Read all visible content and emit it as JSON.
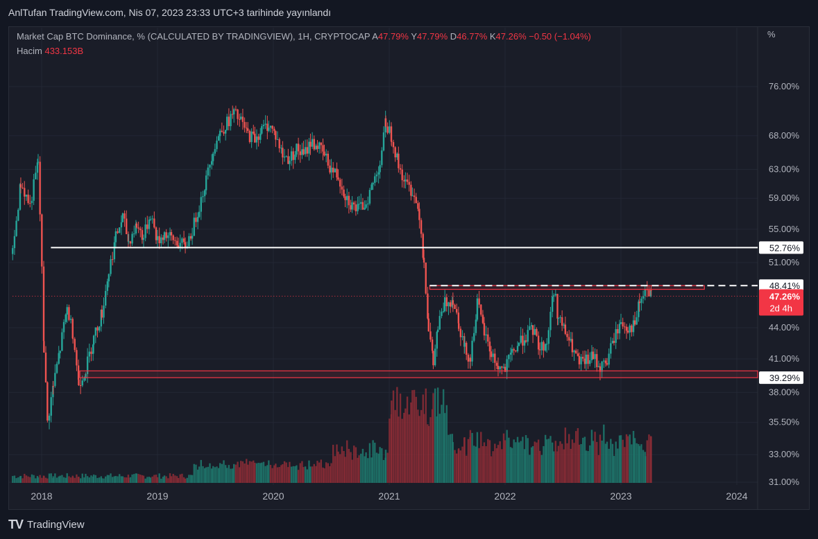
{
  "header": {
    "published": "AnlTufan TradingView.com, Nis 07, 2023 23:33 UTC+3 tarihinde yayınlandı"
  },
  "legend": {
    "symbol": "Market Cap BTC Dominance, % (CALCULATED BY TRADINGVIEW), 1H, CRYPTOCAP",
    "a_label": "A",
    "a_value": "47.79%",
    "y_label": "Y",
    "y_value": "47.79%",
    "d_label": "D",
    "d_value": "46.77%",
    "k_label": "K",
    "k_value": "47.26%",
    "change": "−0.50 (−1.04%)",
    "volume_label": "Hacim",
    "volume_value": "433.153B"
  },
  "axis": {
    "unit": "%"
  },
  "footer": {
    "brand": "TradingView",
    "logo": "TV"
  },
  "chart_data": {
    "type": "candlestick",
    "title": "Market Cap BTC Dominance, % (CALCULATED BY TRADINGVIEW), 1H, CRYPTOCAP",
    "y_scale": "log",
    "y_ticks": [
      "76.00%",
      "68.00%",
      "63.00%",
      "59.00%",
      "55.00%",
      "51.00%",
      "44.00%",
      "41.00%",
      "38.00%",
      "35.50%",
      "33.00%",
      "31.00%"
    ],
    "x_ticks": [
      "2018",
      "2019",
      "2020",
      "2021",
      "2022",
      "2023",
      "2024"
    ],
    "price_labels": [
      {
        "value": 52.76,
        "text": "52.76%"
      },
      {
        "value": 48.41,
        "text": "48.41%"
      },
      {
        "value": 39.29,
        "text": "39.29%"
      }
    ],
    "last_price": {
      "value": 47.26,
      "text": "47.26%",
      "countdown": "2d 4h"
    },
    "levels": [
      {
        "value": 52.76,
        "style": "solid",
        "color": "#ffffff",
        "from": 2018.08
      },
      {
        "value": 48.41,
        "style": "dashed",
        "color": "#ffffff",
        "from": 2021.35
      },
      {
        "value": 47.26,
        "style": "dotted",
        "color": "#f23645",
        "from": 2017.75
      }
    ],
    "zones": [
      {
        "low": 48.0,
        "high": 48.41,
        "from": 2021.35,
        "to": 2023.72,
        "color": "#f23645"
      },
      {
        "low": 39.29,
        "high": 39.9,
        "from": 2018.33,
        "to": 2024.2,
        "color": "#f23645"
      }
    ],
    "closes": [
      {
        "t": 2017.75,
        "v": 52.0
      },
      {
        "t": 2017.82,
        "v": 61.0
      },
      {
        "t": 2017.9,
        "v": 58.0
      },
      {
        "t": 2017.97,
        "v": 64.0
      },
      {
        "t": 2018.02,
        "v": 42.0
      },
      {
        "t": 2018.05,
        "v": 35.5
      },
      {
        "t": 2018.1,
        "v": 38.5
      },
      {
        "t": 2018.16,
        "v": 42.0
      },
      {
        "t": 2018.22,
        "v": 46.0
      },
      {
        "t": 2018.27,
        "v": 43.5
      },
      {
        "t": 2018.32,
        "v": 38.8
      },
      {
        "t": 2018.38,
        "v": 40.0
      },
      {
        "t": 2018.45,
        "v": 43.0
      },
      {
        "t": 2018.52,
        "v": 45.5
      },
      {
        "t": 2018.58,
        "v": 50.0
      },
      {
        "t": 2018.64,
        "v": 54.0
      },
      {
        "t": 2018.7,
        "v": 56.5
      },
      {
        "t": 2018.75,
        "v": 53.5
      },
      {
        "t": 2018.82,
        "v": 55.5
      },
      {
        "t": 2018.88,
        "v": 54.0
      },
      {
        "t": 2018.94,
        "v": 57.0
      },
      {
        "t": 2019.0,
        "v": 53.5
      },
      {
        "t": 2019.06,
        "v": 54.5
      },
      {
        "t": 2019.12,
        "v": 53.8
      },
      {
        "t": 2019.18,
        "v": 53.3
      },
      {
        "t": 2019.24,
        "v": 52.9
      },
      {
        "t": 2019.3,
        "v": 54.8
      },
      {
        "t": 2019.36,
        "v": 58.0
      },
      {
        "t": 2019.42,
        "v": 61.5
      },
      {
        "t": 2019.48,
        "v": 66.0
      },
      {
        "t": 2019.54,
        "v": 68.5
      },
      {
        "t": 2019.6,
        "v": 70.0
      },
      {
        "t": 2019.66,
        "v": 71.5
      },
      {
        "t": 2019.72,
        "v": 70.2
      },
      {
        "t": 2019.78,
        "v": 68.2
      },
      {
        "t": 2019.84,
        "v": 67.6
      },
      {
        "t": 2019.9,
        "v": 68.9
      },
      {
        "t": 2019.96,
        "v": 69.8
      },
      {
        "t": 2020.02,
        "v": 68.0
      },
      {
        "t": 2020.08,
        "v": 65.0
      },
      {
        "t": 2020.14,
        "v": 64.5
      },
      {
        "t": 2020.2,
        "v": 66.0
      },
      {
        "t": 2020.26,
        "v": 65.0
      },
      {
        "t": 2020.32,
        "v": 67.0
      },
      {
        "t": 2020.38,
        "v": 66.5
      },
      {
        "t": 2020.44,
        "v": 65.0
      },
      {
        "t": 2020.5,
        "v": 63.0
      },
      {
        "t": 2020.56,
        "v": 62.0
      },
      {
        "t": 2020.62,
        "v": 59.5
      },
      {
        "t": 2020.68,
        "v": 58.0
      },
      {
        "t": 2020.74,
        "v": 57.5
      },
      {
        "t": 2020.8,
        "v": 58.5
      },
      {
        "t": 2020.86,
        "v": 61.0
      },
      {
        "t": 2020.92,
        "v": 64.0
      },
      {
        "t": 2020.97,
        "v": 70.0
      },
      {
        "t": 2021.02,
        "v": 68.0
      },
      {
        "t": 2021.08,
        "v": 63.5
      },
      {
        "t": 2021.14,
        "v": 61.0
      },
      {
        "t": 2021.2,
        "v": 60.0
      },
      {
        "t": 2021.26,
        "v": 57.0
      },
      {
        "t": 2021.3,
        "v": 51.0
      },
      {
        "t": 2021.34,
        "v": 44.0
      },
      {
        "t": 2021.38,
        "v": 40.5
      },
      {
        "t": 2021.42,
        "v": 44.0
      },
      {
        "t": 2021.48,
        "v": 46.5
      },
      {
        "t": 2021.55,
        "v": 47.0
      },
      {
        "t": 2021.6,
        "v": 44.5
      },
      {
        "t": 2021.65,
        "v": 42.0
      },
      {
        "t": 2021.7,
        "v": 41.0
      },
      {
        "t": 2021.76,
        "v": 46.5
      },
      {
        "t": 2021.82,
        "v": 43.5
      },
      {
        "t": 2021.88,
        "v": 41.5
      },
      {
        "t": 2021.94,
        "v": 40.2
      },
      {
        "t": 2022.0,
        "v": 40.0
      },
      {
        "t": 2022.06,
        "v": 41.5
      },
      {
        "t": 2022.12,
        "v": 42.5
      },
      {
        "t": 2022.18,
        "v": 43.2
      },
      {
        "t": 2022.24,
        "v": 43.8
      },
      {
        "t": 2022.3,
        "v": 42.0
      },
      {
        "t": 2022.36,
        "v": 42.5
      },
      {
        "t": 2022.42,
        "v": 48.0
      },
      {
        "t": 2022.46,
        "v": 45.0
      },
      {
        "t": 2022.52,
        "v": 43.5
      },
      {
        "t": 2022.58,
        "v": 42.0
      },
      {
        "t": 2022.64,
        "v": 40.5
      },
      {
        "t": 2022.7,
        "v": 40.8
      },
      {
        "t": 2022.76,
        "v": 41.2
      },
      {
        "t": 2022.82,
        "v": 40.2
      },
      {
        "t": 2022.88,
        "v": 40.8
      },
      {
        "t": 2022.94,
        "v": 43.0
      },
      {
        "t": 2023.0,
        "v": 44.5
      },
      {
        "t": 2023.06,
        "v": 44.0
      },
      {
        "t": 2023.12,
        "v": 44.2
      },
      {
        "t": 2023.16,
        "v": 46.5
      },
      {
        "t": 2023.21,
        "v": 47.8
      },
      {
        "t": 2023.26,
        "v": 47.26
      }
    ]
  }
}
